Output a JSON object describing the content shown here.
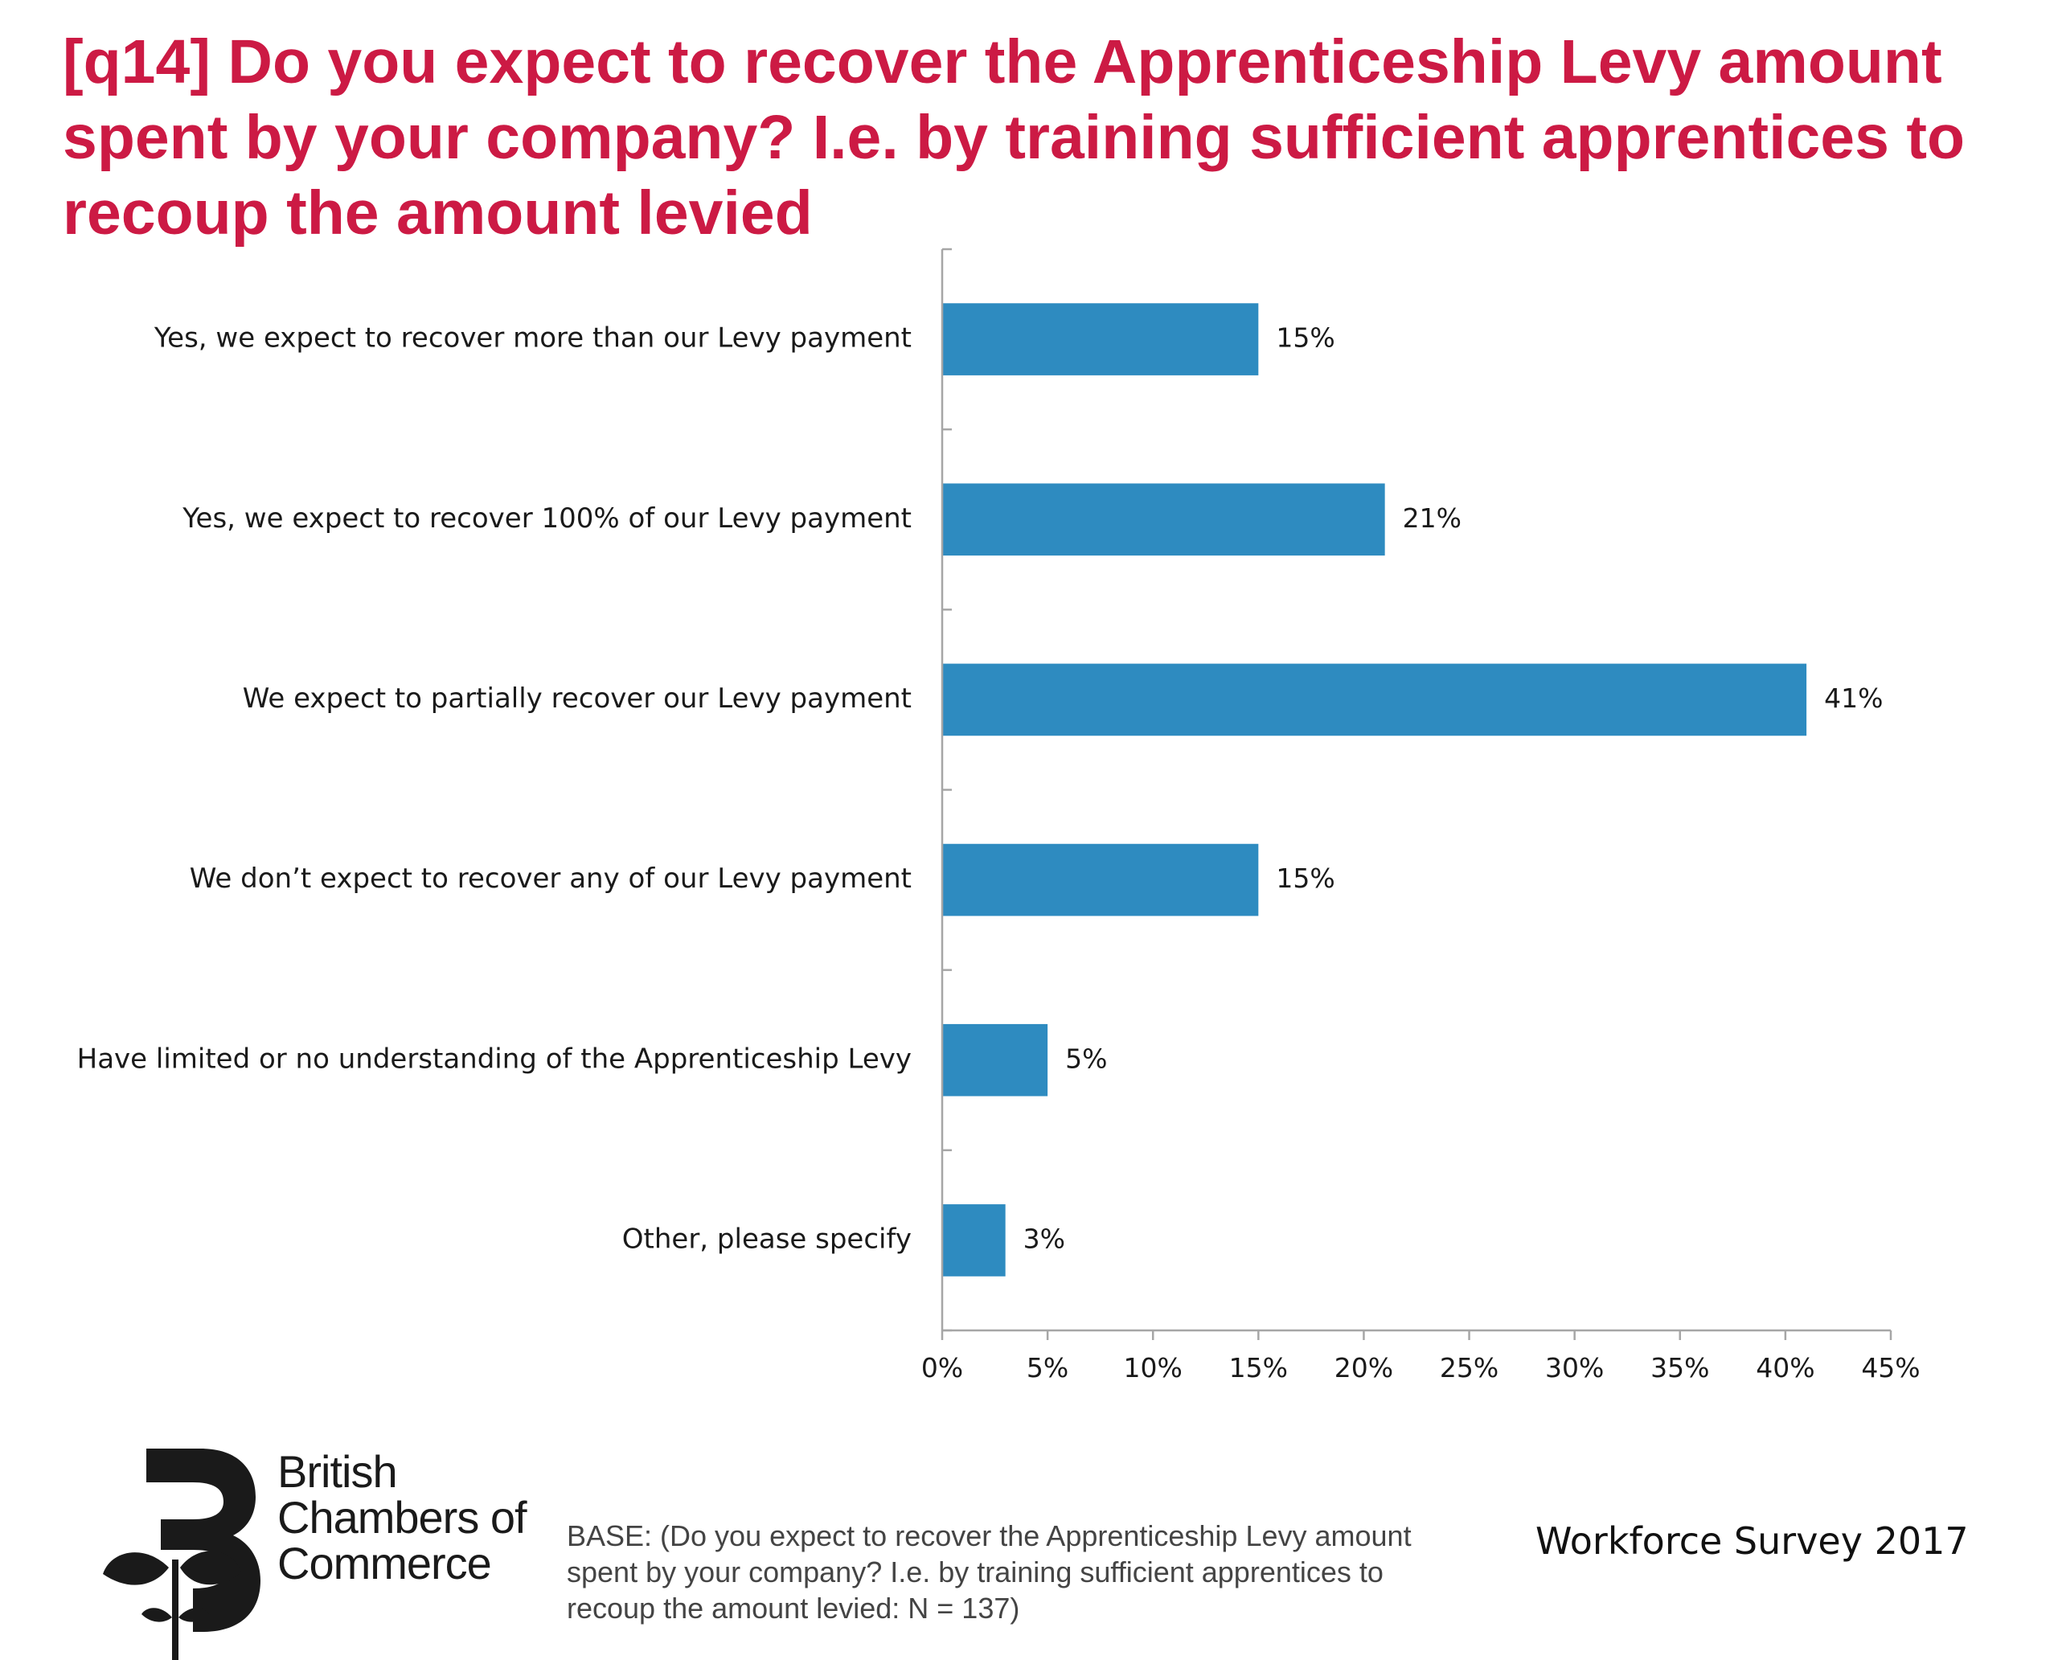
{
  "chart_data": {
    "type": "bar",
    "orientation": "horizontal",
    "title": "[q14] Do you expect to recover the Apprenticeship Levy amount spent by your company? I.e. by training sufficient apprentices to recoup the amount levied",
    "categories": [
      "Yes, we expect to recover more than our Levy payment",
      "Yes, we expect to recover 100% of our Levy payment",
      "We expect to partially recover our Levy payment",
      "We don’t expect to recover any of our Levy payment",
      "Have limited or no understanding of the Apprenticeship Levy",
      "Other, please specify"
    ],
    "values": [
      15,
      21,
      41,
      15,
      5,
      3
    ],
    "value_labels": [
      "15%",
      "21%",
      "41%",
      "15%",
      "5%",
      "3%"
    ],
    "xlim": [
      0,
      45
    ],
    "x_ticks": [
      "0%",
      "5%",
      "10%",
      "15%",
      "20%",
      "25%",
      "30%",
      "35%",
      "40%",
      "45%"
    ],
    "xlabel": "",
    "ylabel": "",
    "grid": false,
    "legend": "none",
    "bar_color": "#2e8bc0",
    "title_color": "#cc1a44"
  },
  "logo": {
    "lines": [
      "British",
      "Chambers of",
      "Commerce"
    ]
  },
  "footer": {
    "base_note": "BASE: (Do you expect to recover the Apprenticeship Levy amount spent by your company? I.e. by training sufficient apprentices to recoup the amount levied: N = 137)",
    "survey": "Workforce Survey 2017"
  }
}
